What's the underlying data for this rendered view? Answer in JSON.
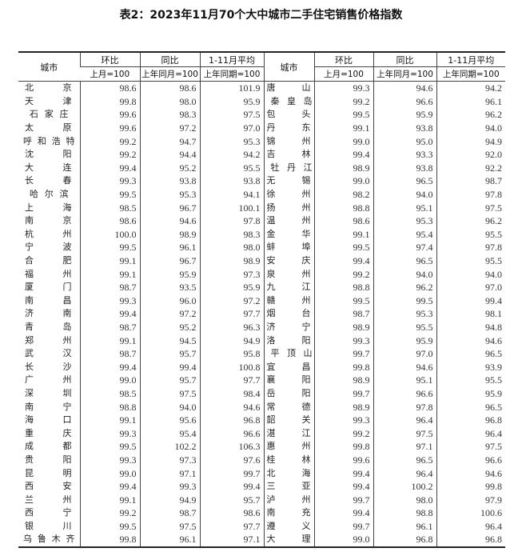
{
  "title": "表2：2023年11月70个大中城市二手住宅销售价格指数",
  "headers": {
    "city": "城市",
    "mom": "环比",
    "yoy": "同比",
    "avg": "1-11月平均",
    "mom_base": "上月=100",
    "yoy_base": "上年同月=100",
    "avg_base": "上年同期=100"
  },
  "rows": [
    {
      "left": {
        "city": "北京",
        "mom": "98.6",
        "yoy": "98.6",
        "avg": "101.9"
      },
      "right": {
        "city": "唐山",
        "mom": "99.3",
        "yoy": "94.6",
        "avg": "94.2"
      }
    },
    {
      "left": {
        "city": "天津",
        "mom": "99.8",
        "yoy": "98.0",
        "avg": "95.9"
      },
      "right": {
        "city": "秦皇岛",
        "mom": "99.2",
        "yoy": "96.6",
        "avg": "96.1"
      }
    },
    {
      "left": {
        "city": "石家庄",
        "mom": "99.6",
        "yoy": "98.3",
        "avg": "97.5"
      },
      "right": {
        "city": "包头",
        "mom": "99.5",
        "yoy": "95.9",
        "avg": "96.2"
      }
    },
    {
      "left": {
        "city": "太原",
        "mom": "99.6",
        "yoy": "97.2",
        "avg": "97.0"
      },
      "right": {
        "city": "丹东",
        "mom": "99.1",
        "yoy": "93.8",
        "avg": "94.0"
      }
    },
    {
      "left": {
        "city": "呼和浩特",
        "mom": "99.2",
        "yoy": "94.7",
        "avg": "95.3"
      },
      "right": {
        "city": "锦州",
        "mom": "99.0",
        "yoy": "95.0",
        "avg": "94.9"
      }
    },
    {
      "left": {
        "city": "沈阳",
        "mom": "99.2",
        "yoy": "94.4",
        "avg": "94.2"
      },
      "right": {
        "city": "吉林",
        "mom": "99.4",
        "yoy": "93.3",
        "avg": "92.0"
      }
    },
    {
      "left": {
        "city": "大连",
        "mom": "99.4",
        "yoy": "95.2",
        "avg": "95.5"
      },
      "right": {
        "city": "牡丹江",
        "mom": "98.9",
        "yoy": "93.8",
        "avg": "92.2"
      }
    },
    {
      "left": {
        "city": "长春",
        "mom": "99.3",
        "yoy": "93.8",
        "avg": "93.8"
      },
      "right": {
        "city": "无锡",
        "mom": "99.0",
        "yoy": "96.5",
        "avg": "98.7"
      }
    },
    {
      "left": {
        "city": "哈尔滨",
        "mom": "99.5",
        "yoy": "95.3",
        "avg": "94.1"
      },
      "right": {
        "city": "徐州",
        "mom": "98.2",
        "yoy": "94.0",
        "avg": "97.8"
      }
    },
    {
      "left": {
        "city": "上海",
        "mom": "98.5",
        "yoy": "96.7",
        "avg": "100.1"
      },
      "right": {
        "city": "扬州",
        "mom": "98.8",
        "yoy": "95.1",
        "avg": "97.5"
      }
    },
    {
      "left": {
        "city": "南京",
        "mom": "98.6",
        "yoy": "94.6",
        "avg": "97.8"
      },
      "right": {
        "city": "温州",
        "mom": "98.6",
        "yoy": "95.3",
        "avg": "96.2"
      }
    },
    {
      "left": {
        "city": "杭州",
        "mom": "100.0",
        "yoy": "98.9",
        "avg": "98.3"
      },
      "right": {
        "city": "金华",
        "mom": "99.1",
        "yoy": "95.4",
        "avg": "95.5"
      }
    },
    {
      "left": {
        "city": "宁波",
        "mom": "99.5",
        "yoy": "96.1",
        "avg": "98.0"
      },
      "right": {
        "city": "蚌埠",
        "mom": "99.5",
        "yoy": "97.4",
        "avg": "97.8"
      }
    },
    {
      "left": {
        "city": "合肥",
        "mom": "99.1",
        "yoy": "96.7",
        "avg": "98.9"
      },
      "right": {
        "city": "安庆",
        "mom": "99.4",
        "yoy": "96.5",
        "avg": "95.5"
      }
    },
    {
      "left": {
        "city": "福州",
        "mom": "99.1",
        "yoy": "95.9",
        "avg": "97.3"
      },
      "right": {
        "city": "泉州",
        "mom": "99.2",
        "yoy": "94.0",
        "avg": "94.0"
      }
    },
    {
      "left": {
        "city": "厦门",
        "mom": "98.7",
        "yoy": "93.5",
        "avg": "95.9"
      },
      "right": {
        "city": "九江",
        "mom": "98.8",
        "yoy": "96.2",
        "avg": "97.0"
      }
    },
    {
      "left": {
        "city": "南昌",
        "mom": "99.3",
        "yoy": "96.0",
        "avg": "97.2"
      },
      "right": {
        "city": "赣州",
        "mom": "99.5",
        "yoy": "99.5",
        "avg": "99.4"
      }
    },
    {
      "left": {
        "city": "济南",
        "mom": "99.4",
        "yoy": "97.2",
        "avg": "97.7"
      },
      "right": {
        "city": "烟台",
        "mom": "98.7",
        "yoy": "95.3",
        "avg": "98.1"
      }
    },
    {
      "left": {
        "city": "青岛",
        "mom": "98.7",
        "yoy": "95.2",
        "avg": "96.3"
      },
      "right": {
        "city": "济宁",
        "mom": "98.9",
        "yoy": "95.5",
        "avg": "94.8"
      }
    },
    {
      "left": {
        "city": "郑州",
        "mom": "99.1",
        "yoy": "94.5",
        "avg": "94.9"
      },
      "right": {
        "city": "洛阳",
        "mom": "99.3",
        "yoy": "95.9",
        "avg": "94.6"
      }
    },
    {
      "left": {
        "city": "武汉",
        "mom": "98.7",
        "yoy": "95.7",
        "avg": "95.8"
      },
      "right": {
        "city": "平顶山",
        "mom": "99.7",
        "yoy": "97.0",
        "avg": "96.5"
      }
    },
    {
      "left": {
        "city": "长沙",
        "mom": "99.4",
        "yoy": "99.4",
        "avg": "100.8"
      },
      "right": {
        "city": "宜昌",
        "mom": "99.8",
        "yoy": "94.6",
        "avg": "93.9"
      }
    },
    {
      "left": {
        "city": "广州",
        "mom": "99.0",
        "yoy": "95.7",
        "avg": "97.7"
      },
      "right": {
        "city": "襄阳",
        "mom": "98.9",
        "yoy": "95.1",
        "avg": "95.5"
      }
    },
    {
      "left": {
        "city": "深圳",
        "mom": "98.5",
        "yoy": "97.5",
        "avg": "98.4"
      },
      "right": {
        "city": "岳阳",
        "mom": "99.7",
        "yoy": "96.6",
        "avg": "95.9"
      }
    },
    {
      "left": {
        "city": "南宁",
        "mom": "98.8",
        "yoy": "94.0",
        "avg": "94.6"
      },
      "right": {
        "city": "常德",
        "mom": "98.9",
        "yoy": "97.8",
        "avg": "96.5"
      }
    },
    {
      "left": {
        "city": "海口",
        "mom": "99.1",
        "yoy": "95.6",
        "avg": "96.8"
      },
      "right": {
        "city": "韶关",
        "mom": "99.3",
        "yoy": "96.4",
        "avg": "96.8"
      }
    },
    {
      "left": {
        "city": "重庆",
        "mom": "99.3",
        "yoy": "95.4",
        "avg": "96.6"
      },
      "right": {
        "city": "湛江",
        "mom": "99.2",
        "yoy": "97.5",
        "avg": "96.4"
      }
    },
    {
      "left": {
        "city": "成都",
        "mom": "99.5",
        "yoy": "102.2",
        "avg": "106.3"
      },
      "right": {
        "city": "惠州",
        "mom": "99.8",
        "yoy": "97.1",
        "avg": "97.5"
      }
    },
    {
      "left": {
        "city": "贵阳",
        "mom": "99.3",
        "yoy": "97.3",
        "avg": "97.6"
      },
      "right": {
        "city": "桂林",
        "mom": "99.6",
        "yoy": "96.5",
        "avg": "96.6"
      }
    },
    {
      "left": {
        "city": "昆明",
        "mom": "99.0",
        "yoy": "97.1",
        "avg": "99.7"
      },
      "right": {
        "city": "北海",
        "mom": "99.4",
        "yoy": "96.4",
        "avg": "94.6"
      }
    },
    {
      "left": {
        "city": "西安",
        "mom": "99.4",
        "yoy": "99.3",
        "avg": "99.4"
      },
      "right": {
        "city": "三亚",
        "mom": "99.4",
        "yoy": "100.2",
        "avg": "99.8"
      }
    },
    {
      "left": {
        "city": "兰州",
        "mom": "99.1",
        "yoy": "94.9",
        "avg": "95.7"
      },
      "right": {
        "city": "泸州",
        "mom": "99.7",
        "yoy": "98.0",
        "avg": "97.9"
      }
    },
    {
      "left": {
        "city": "西宁",
        "mom": "99.2",
        "yoy": "98.7",
        "avg": "98.6"
      },
      "right": {
        "city": "南充",
        "mom": "99.4",
        "yoy": "98.8",
        "avg": "100.6"
      }
    },
    {
      "left": {
        "city": "银川",
        "mom": "99.5",
        "yoy": "97.5",
        "avg": "97.7"
      },
      "right": {
        "city": "遵义",
        "mom": "99.7",
        "yoy": "96.1",
        "avg": "96.4"
      }
    },
    {
      "left": {
        "city": "乌鲁木齐",
        "mom": "99.8",
        "yoy": "96.1",
        "avg": "97.1"
      },
      "right": {
        "city": "大理",
        "mom": "99.0",
        "yoy": "96.8",
        "avg": "96.8"
      }
    }
  ]
}
